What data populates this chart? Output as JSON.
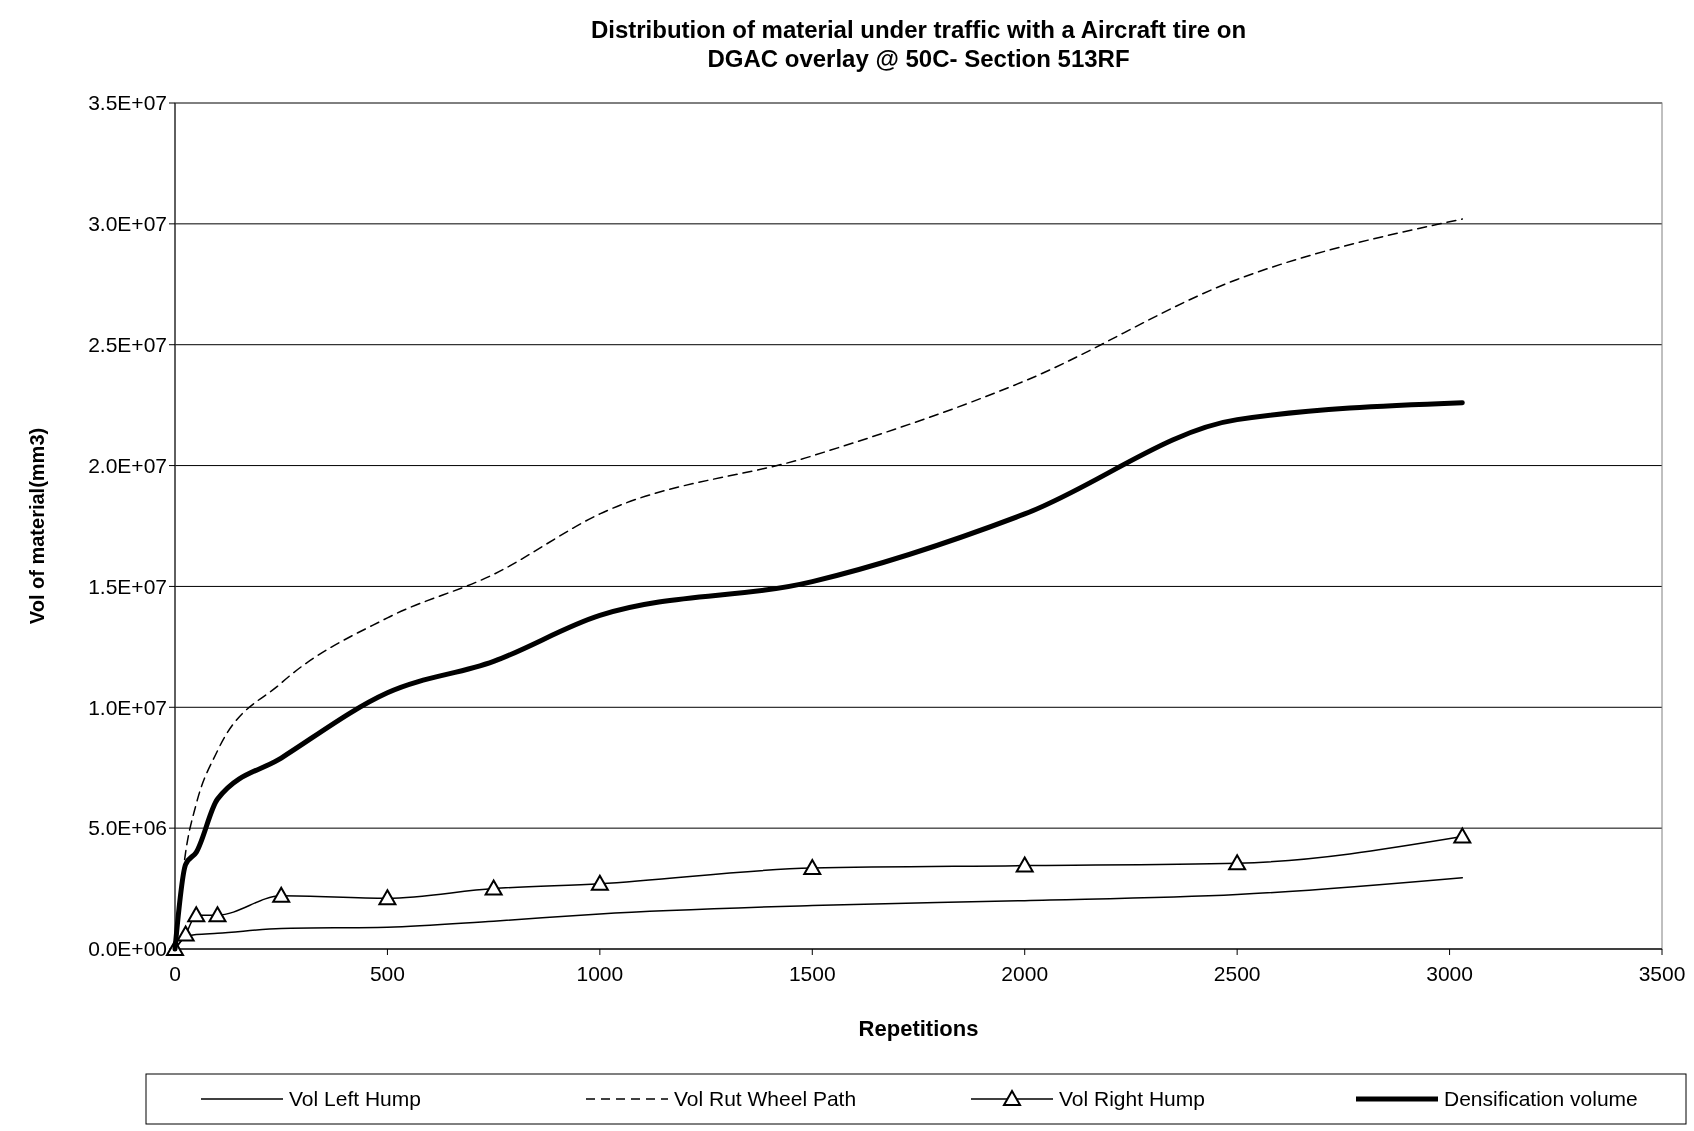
{
  "chart_data": {
    "type": "line",
    "title": "Distribution of material under traffic with a Aircraft tire on\nDGAC overlay @ 50C- Section 513RF",
    "xlabel": "Repetitions",
    "ylabel": "Vol of material(mm3)",
    "x": [
      0,
      25,
      50,
      100,
      250,
      500,
      750,
      1000,
      1500,
      2000,
      2500,
      3030
    ],
    "series": [
      {
        "name": "Vol Left Hump",
        "color": "#000000",
        "line_style": "solid",
        "marker": "none",
        "values": [
          0,
          500000,
          600000,
          650000,
          850000,
          900000,
          1150000,
          1450000,
          1800000,
          2000000,
          2250000,
          2950000
        ]
      },
      {
        "name": "Vol Rut Wheel Path",
        "color": "#000000",
        "line_style": "dashed",
        "marker": "none",
        "values": [
          0,
          4000000,
          6000000,
          8200000,
          11000000,
          13700000,
          15500000,
          18000000,
          20400000,
          23500000,
          27700000,
          30200000
        ]
      },
      {
        "name": "Vol Right Hump",
        "color": "#000000",
        "line_style": "solid",
        "marker": "triangle",
        "values": [
          0,
          600000,
          1400000,
          1400000,
          2200000,
          2100000,
          2500000,
          2700000,
          3350000,
          3450000,
          3550000,
          4650000
        ]
      },
      {
        "name": "Densification volume",
        "color": "#000000",
        "line_style": "solid",
        "marker": "none",
        "values": [
          0,
          3500000,
          4000000,
          6200000,
          7900000,
          10600000,
          11900000,
          13800000,
          15200000,
          18000000,
          21900000,
          22600000
        ]
      }
    ],
    "xlim": [
      0,
      3500
    ],
    "xticks": [
      0,
      500,
      1000,
      1500,
      2000,
      2500,
      3000,
      3500
    ],
    "ylim": [
      0,
      35000000
    ],
    "yticks": [
      {
        "value": 0,
        "label": "0.0E+00"
      },
      {
        "value": 5000000,
        "label": "5.0E+06"
      },
      {
        "value": 10000000,
        "label": "1.0E+07"
      },
      {
        "value": 15000000,
        "label": "1.5E+07"
      },
      {
        "value": 20000000,
        "label": "2.0E+07"
      },
      {
        "value": 25000000,
        "label": "2.5E+07"
      },
      {
        "value": 30000000,
        "label": "3.0E+07"
      },
      {
        "value": 35000000,
        "label": "3.5E+07"
      }
    ],
    "grid": "y",
    "legend": "bottom"
  }
}
